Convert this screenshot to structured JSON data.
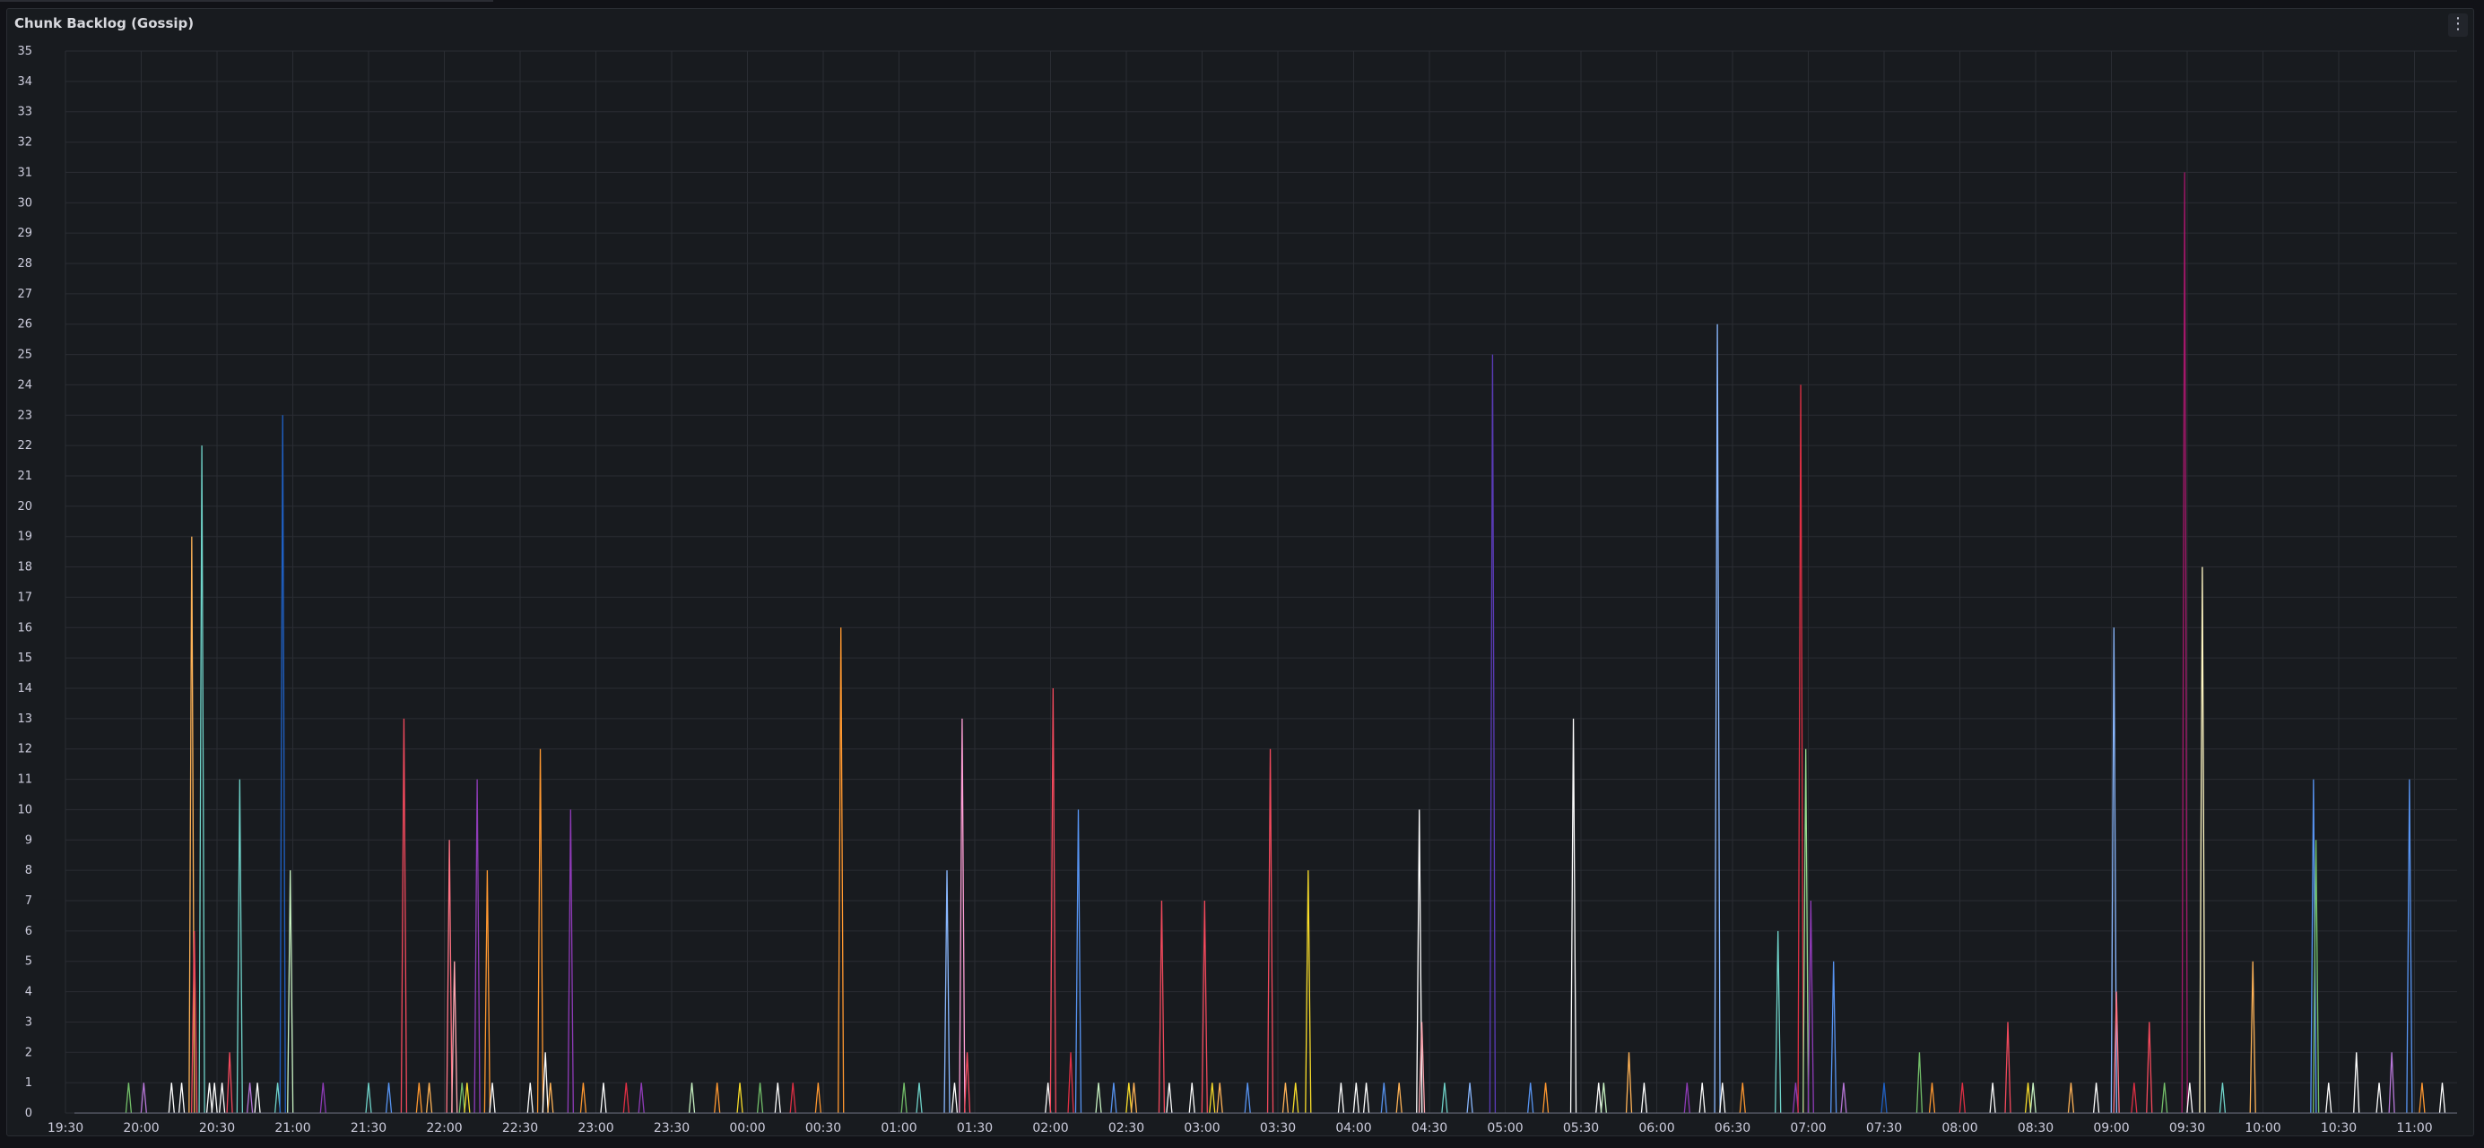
{
  "panel": {
    "title": "Chunk Backlog (Gossip)",
    "menu_icon": "more-vertical-icon"
  },
  "chart_data": {
    "type": "line",
    "title": "Chunk Backlog (Gossip)",
    "xlabel": "",
    "ylabel": "",
    "ylim": [
      0,
      35
    ],
    "grid": true,
    "legend": "none",
    "y_ticks": [
      "0",
      "1",
      "2",
      "3",
      "4",
      "5",
      "6",
      "7",
      "8",
      "9",
      "10",
      "11",
      "12",
      "13",
      "14",
      "15",
      "16",
      "17",
      "18",
      "19",
      "20",
      "21",
      "22",
      "23",
      "24",
      "25",
      "26",
      "27",
      "28",
      "29",
      "30",
      "31",
      "32",
      "33",
      "34",
      "35"
    ],
    "x_ticks": [
      "19:30",
      "20:00",
      "20:30",
      "21:00",
      "21:30",
      "22:00",
      "22:30",
      "23:00",
      "23:30",
      "00:00",
      "00:30",
      "01:00",
      "01:30",
      "02:00",
      "02:30",
      "03:00",
      "03:30",
      "04:00",
      "04:30",
      "05:00",
      "05:30",
      "06:00",
      "06:30",
      "07:00",
      "07:30",
      "08:00",
      "08:30",
      "09:00",
      "09:30",
      "10:00",
      "10:30",
      "11:00"
    ],
    "x_start": "19:30",
    "x_end": "11:15",
    "spikes": [
      {
        "t": "19:55",
        "v": 1,
        "color": "#73bf69"
      },
      {
        "t": "20:01",
        "v": 1,
        "color": "#b877d9"
      },
      {
        "t": "20:12",
        "v": 1,
        "color": "#ffffff"
      },
      {
        "t": "20:16",
        "v": 1,
        "color": "#ffffff"
      },
      {
        "t": "20:20",
        "v": 19,
        "color": "#ffb357"
      },
      {
        "t": "20:21",
        "v": 6,
        "color": "#f2495c"
      },
      {
        "t": "20:24",
        "v": 22,
        "color": "#6fd3c9"
      },
      {
        "t": "20:27",
        "v": 1,
        "color": "#ffffff"
      },
      {
        "t": "20:29",
        "v": 1,
        "color": "#ffffff"
      },
      {
        "t": "20:32",
        "v": 1,
        "color": "#ffffff"
      },
      {
        "t": "20:35",
        "v": 2,
        "color": "#f2495c"
      },
      {
        "t": "20:39",
        "v": 11,
        "color": "#6fd3c9"
      },
      {
        "t": "20:43",
        "v": 1,
        "color": "#b877d9"
      },
      {
        "t": "20:46",
        "v": 1,
        "color": "#ffffff"
      },
      {
        "t": "20:54",
        "v": 1,
        "color": "#6fd3c9"
      },
      {
        "t": "20:56",
        "v": 23,
        "color": "#1f60c4"
      },
      {
        "t": "20:59",
        "v": 8,
        "color": "#c8f2c2"
      },
      {
        "t": "21:12",
        "v": 1,
        "color": "#8f3bb8"
      },
      {
        "t": "21:30",
        "v": 1,
        "color": "#6fd3c9"
      },
      {
        "t": "21:38",
        "v": 1,
        "color": "#5794f2"
      },
      {
        "t": "21:44",
        "v": 13,
        "color": "#f2495c"
      },
      {
        "t": "21:50",
        "v": 1,
        "color": "#ff9830"
      },
      {
        "t": "21:54",
        "v": 1,
        "color": "#ffb357"
      },
      {
        "t": "22:02",
        "v": 9,
        "color": "#ff7383"
      },
      {
        "t": "22:04",
        "v": 5,
        "color": "#ffa6b0"
      },
      {
        "t": "22:07",
        "v": 1,
        "color": "#73bf69"
      },
      {
        "t": "22:09",
        "v": 1,
        "color": "#fade2a"
      },
      {
        "t": "22:13",
        "v": 11,
        "color": "#8f3bb8"
      },
      {
        "t": "22:17",
        "v": 8,
        "color": "#ff9830"
      },
      {
        "t": "22:19",
        "v": 1,
        "color": "#ffffff"
      },
      {
        "t": "22:34",
        "v": 1,
        "color": "#ffffff"
      },
      {
        "t": "22:38",
        "v": 12,
        "color": "#ff9830"
      },
      {
        "t": "22:40",
        "v": 2,
        "color": "#ffffff"
      },
      {
        "t": "22:42",
        "v": 1,
        "color": "#ffb357"
      },
      {
        "t": "22:50",
        "v": 10,
        "color": "#8f3bb8"
      },
      {
        "t": "22:55",
        "v": 1,
        "color": "#ff9830"
      },
      {
        "t": "23:03",
        "v": 1,
        "color": "#ffffff"
      },
      {
        "t": "23:12",
        "v": 1,
        "color": "#e02f44"
      },
      {
        "t": "23:18",
        "v": 1,
        "color": "#8f3bb8"
      },
      {
        "t": "23:38",
        "v": 1,
        "color": "#c8f2c2"
      },
      {
        "t": "23:48",
        "v": 1,
        "color": "#ff9830"
      },
      {
        "t": "23:57",
        "v": 1,
        "color": "#fade2a"
      },
      {
        "t": "00:05",
        "v": 1,
        "color": "#73bf69"
      },
      {
        "t": "00:12",
        "v": 1,
        "color": "#ffffff"
      },
      {
        "t": "00:18",
        "v": 1,
        "color": "#e02f44"
      },
      {
        "t": "00:28",
        "v": 1,
        "color": "#ff9830"
      },
      {
        "t": "00:37",
        "v": 16,
        "color": "#ff9830"
      },
      {
        "t": "01:02",
        "v": 1,
        "color": "#73bf69"
      },
      {
        "t": "01:08",
        "v": 1,
        "color": "#6fd3c9"
      },
      {
        "t": "01:19",
        "v": 8,
        "color": "#8ab8ff"
      },
      {
        "t": "01:22",
        "v": 1,
        "color": "#ffffff"
      },
      {
        "t": "01:25",
        "v": 13,
        "color": "#ff9fd6"
      },
      {
        "t": "01:27",
        "v": 2,
        "color": "#f2495c"
      },
      {
        "t": "01:59",
        "v": 1,
        "color": "#ffffff"
      },
      {
        "t": "02:01",
        "v": 14,
        "color": "#f2495c"
      },
      {
        "t": "02:08",
        "v": 2,
        "color": "#e02f44"
      },
      {
        "t": "02:11",
        "v": 10,
        "color": "#5794f2"
      },
      {
        "t": "02:19",
        "v": 1,
        "color": "#c8f2c2"
      },
      {
        "t": "02:25",
        "v": 1,
        "color": "#5794f2"
      },
      {
        "t": "02:31",
        "v": 1,
        "color": "#fade2a"
      },
      {
        "t": "02:33",
        "v": 1,
        "color": "#ffb357"
      },
      {
        "t": "02:44",
        "v": 7,
        "color": "#f2495c"
      },
      {
        "t": "02:47",
        "v": 1,
        "color": "#ffffff"
      },
      {
        "t": "02:56",
        "v": 1,
        "color": "#ffffff"
      },
      {
        "t": "03:01",
        "v": 7,
        "color": "#f2495c"
      },
      {
        "t": "03:04",
        "v": 1,
        "color": "#fade2a"
      },
      {
        "t": "03:07",
        "v": 1,
        "color": "#ffb357"
      },
      {
        "t": "03:18",
        "v": 1,
        "color": "#5794f2"
      },
      {
        "t": "03:27",
        "v": 12,
        "color": "#f2495c"
      },
      {
        "t": "03:33",
        "v": 1,
        "color": "#ffb357"
      },
      {
        "t": "03:37",
        "v": 1,
        "color": "#fade2a"
      },
      {
        "t": "03:42",
        "v": 8,
        "color": "#fade2a"
      },
      {
        "t": "03:55",
        "v": 1,
        "color": "#ffffff"
      },
      {
        "t": "04:01",
        "v": 1,
        "color": "#ffffff"
      },
      {
        "t": "04:05",
        "v": 1,
        "color": "#ffffff"
      },
      {
        "t": "04:12",
        "v": 1,
        "color": "#5794f2"
      },
      {
        "t": "04:18",
        "v": 1,
        "color": "#ffb357"
      },
      {
        "t": "04:26",
        "v": 10,
        "color": "#ffffff"
      },
      {
        "t": "04:27",
        "v": 3,
        "color": "#ffa6b0"
      },
      {
        "t": "04:36",
        "v": 1,
        "color": "#6fd3c9"
      },
      {
        "t": "04:46",
        "v": 1,
        "color": "#8ab8ff"
      },
      {
        "t": "04:55",
        "v": 25,
        "color": "#5a3bb8"
      },
      {
        "t": "05:10",
        "v": 1,
        "color": "#5794f2"
      },
      {
        "t": "05:16",
        "v": 1,
        "color": "#ff9830"
      },
      {
        "t": "05:27",
        "v": 13,
        "color": "#ffffff"
      },
      {
        "t": "05:37",
        "v": 1,
        "color": "#ffffff"
      },
      {
        "t": "05:39",
        "v": 1,
        "color": "#c8f2c2"
      },
      {
        "t": "05:49",
        "v": 2,
        "color": "#ffb357"
      },
      {
        "t": "05:55",
        "v": 1,
        "color": "#ffffff"
      },
      {
        "t": "06:12",
        "v": 1,
        "color": "#8f3bb8"
      },
      {
        "t": "06:18",
        "v": 1,
        "color": "#ffffff"
      },
      {
        "t": "06:24",
        "v": 26,
        "color": "#8ab8ff"
      },
      {
        "t": "06:26",
        "v": 1,
        "color": "#ffffff"
      },
      {
        "t": "06:34",
        "v": 1,
        "color": "#ff9830"
      },
      {
        "t": "06:48",
        "v": 6,
        "color": "#6fd3c9"
      },
      {
        "t": "06:55",
        "v": 1,
        "color": "#8f3bb8"
      },
      {
        "t": "06:57",
        "v": 24,
        "color": "#e02f44"
      },
      {
        "t": "06:59",
        "v": 12,
        "color": "#96d98d"
      },
      {
        "t": "07:01",
        "v": 7,
        "color": "#8f3bb8"
      },
      {
        "t": "07:10",
        "v": 5,
        "color": "#5794f2"
      },
      {
        "t": "07:14",
        "v": 1,
        "color": "#b877d9"
      },
      {
        "t": "07:30",
        "v": 1,
        "color": "#1f60c4"
      },
      {
        "t": "07:44",
        "v": 2,
        "color": "#73bf69"
      },
      {
        "t": "07:49",
        "v": 1,
        "color": "#ff9830"
      },
      {
        "t": "08:01",
        "v": 1,
        "color": "#e02f44"
      },
      {
        "t": "08:13",
        "v": 1,
        "color": "#ffffff"
      },
      {
        "t": "08:19",
        "v": 3,
        "color": "#f2495c"
      },
      {
        "t": "08:27",
        "v": 1,
        "color": "#fade2a"
      },
      {
        "t": "08:29",
        "v": 1,
        "color": "#c8f2c2"
      },
      {
        "t": "08:44",
        "v": 1,
        "color": "#ffb357"
      },
      {
        "t": "08:54",
        "v": 1,
        "color": "#ffffff"
      },
      {
        "t": "09:01",
        "v": 16,
        "color": "#8ab8ff"
      },
      {
        "t": "09:02",
        "v": 4,
        "color": "#ff7383"
      },
      {
        "t": "09:09",
        "v": 1,
        "color": "#e02f44"
      },
      {
        "t": "09:15",
        "v": 3,
        "color": "#f2495c"
      },
      {
        "t": "09:21",
        "v": 1,
        "color": "#73bf69"
      },
      {
        "t": "09:29",
        "v": 31,
        "color": "#a3186a"
      },
      {
        "t": "09:31",
        "v": 1,
        "color": "#ffffff"
      },
      {
        "t": "09:36",
        "v": 18,
        "color": "#fff7c2"
      },
      {
        "t": "09:44",
        "v": 1,
        "color": "#6fd3c9"
      },
      {
        "t": "09:56",
        "v": 5,
        "color": "#ffb357"
      },
      {
        "t": "10:20",
        "v": 11,
        "color": "#5794f2"
      },
      {
        "t": "10:21",
        "v": 9,
        "color": "#73bf69"
      },
      {
        "t": "10:26",
        "v": 1,
        "color": "#ffffff"
      },
      {
        "t": "10:37",
        "v": 2,
        "color": "#ffffff"
      },
      {
        "t": "10:46",
        "v": 1,
        "color": "#ffffff"
      },
      {
        "t": "10:51",
        "v": 2,
        "color": "#b877d9"
      },
      {
        "t": "10:58",
        "v": 11,
        "color": "#5794f2"
      },
      {
        "t": "11:03",
        "v": 1,
        "color": "#ff9830"
      },
      {
        "t": "11:11",
        "v": 1,
        "color": "#ffffff"
      }
    ]
  }
}
